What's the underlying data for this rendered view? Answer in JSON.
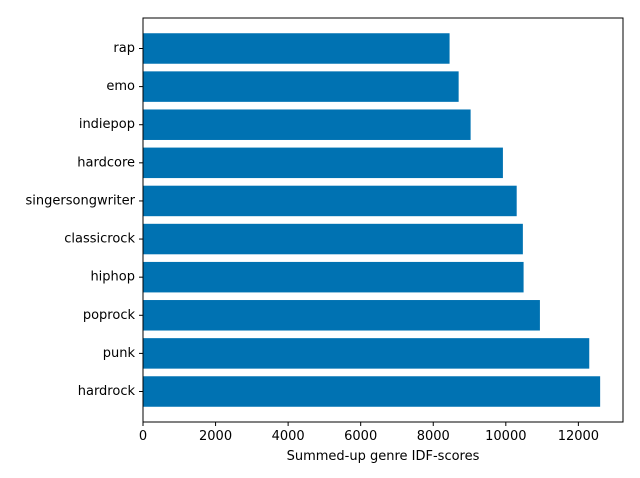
{
  "chart_data": {
    "type": "bar",
    "orientation": "horizontal",
    "categories": [
      "rap",
      "emo",
      "indiepop",
      "hardcore",
      "singersongwriter",
      "classicrock",
      "hiphop",
      "poprock",
      "punk",
      "hardrock"
    ],
    "values": [
      8450,
      8700,
      9030,
      9920,
      10300,
      10470,
      10490,
      10940,
      12300,
      12600
    ],
    "xlabel": "Summed-up genre IDF-scores",
    "ylabel": "",
    "xlim": [
      0,
      13230
    ],
    "xticks": [
      0,
      2000,
      4000,
      6000,
      8000,
      10000,
      12000
    ],
    "grid": false,
    "bar_color": "#0072b2"
  }
}
